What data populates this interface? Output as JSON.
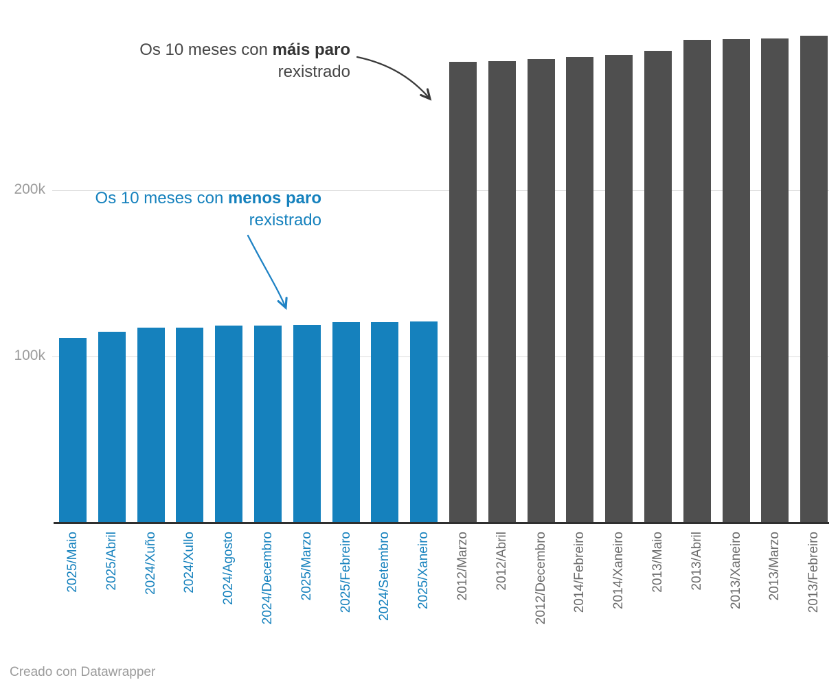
{
  "annotations": {
    "max": {
      "prefix": "Os 10 meses con ",
      "bold": "máis paro",
      "line2": "rexistrado",
      "text_color": "#464646",
      "bold_color": "#333333",
      "arrow_color": "#3a3a3a"
    },
    "min": {
      "prefix": "Os 10 meses con ",
      "bold": "menos paro",
      "line2": "rexistrado",
      "text_color": "#1581bd",
      "bold_color": "#1581bd",
      "arrow_color": "#1e82c4"
    }
  },
  "y_axis": {
    "tick_color": "#9c9c9c",
    "ticks": [
      {
        "label": "100k",
        "value": 100000
      },
      {
        "label": "200k",
        "value": 200000
      }
    ]
  },
  "footer": {
    "text": "Creado con Datawrapper"
  },
  "chart_data": {
    "type": "bar",
    "title": "",
    "xlabel": "",
    "ylabel": "",
    "ylim": [
      0,
      310000
    ],
    "grid": "horizontal",
    "ytick_labels": [
      "100k",
      "200k"
    ],
    "legend_position": "none",
    "series": [
      {
        "name": "Os 10 meses con menos paro rexistrado",
        "color": "#1581bd",
        "label_color": "#1581bd",
        "categories": [
          "2025/Maio",
          "2025/Abril",
          "2024/Xuño",
          "2024/Xullo",
          "2024/Agosto",
          "2024/Decembro",
          "2025/Marzo",
          "2025/Febreiro",
          "2024/Setembro",
          "2025/Xaneiro"
        ],
        "values": [
          111200,
          114900,
          117400,
          117500,
          118600,
          118700,
          119100,
          120600,
          120700,
          120900
        ]
      },
      {
        "name": "Os 10 meses con máis paro rexistrado",
        "color": "#4f4f4f",
        "label_color": "#6b6b6b",
        "categories": [
          "2012/Marzo",
          "2012/Abril",
          "2012/Decembro",
          "2014/Febreiro",
          "2014/Xaneiro",
          "2013/Maio",
          "2013/Abril",
          "2013/Xaneiro",
          "2013/Marzo",
          "2013/Febreiro"
        ],
        "values": [
          277200,
          277600,
          278800,
          280100,
          281300,
          283800,
          290500,
          290900,
          291400,
          292900
        ]
      }
    ]
  }
}
